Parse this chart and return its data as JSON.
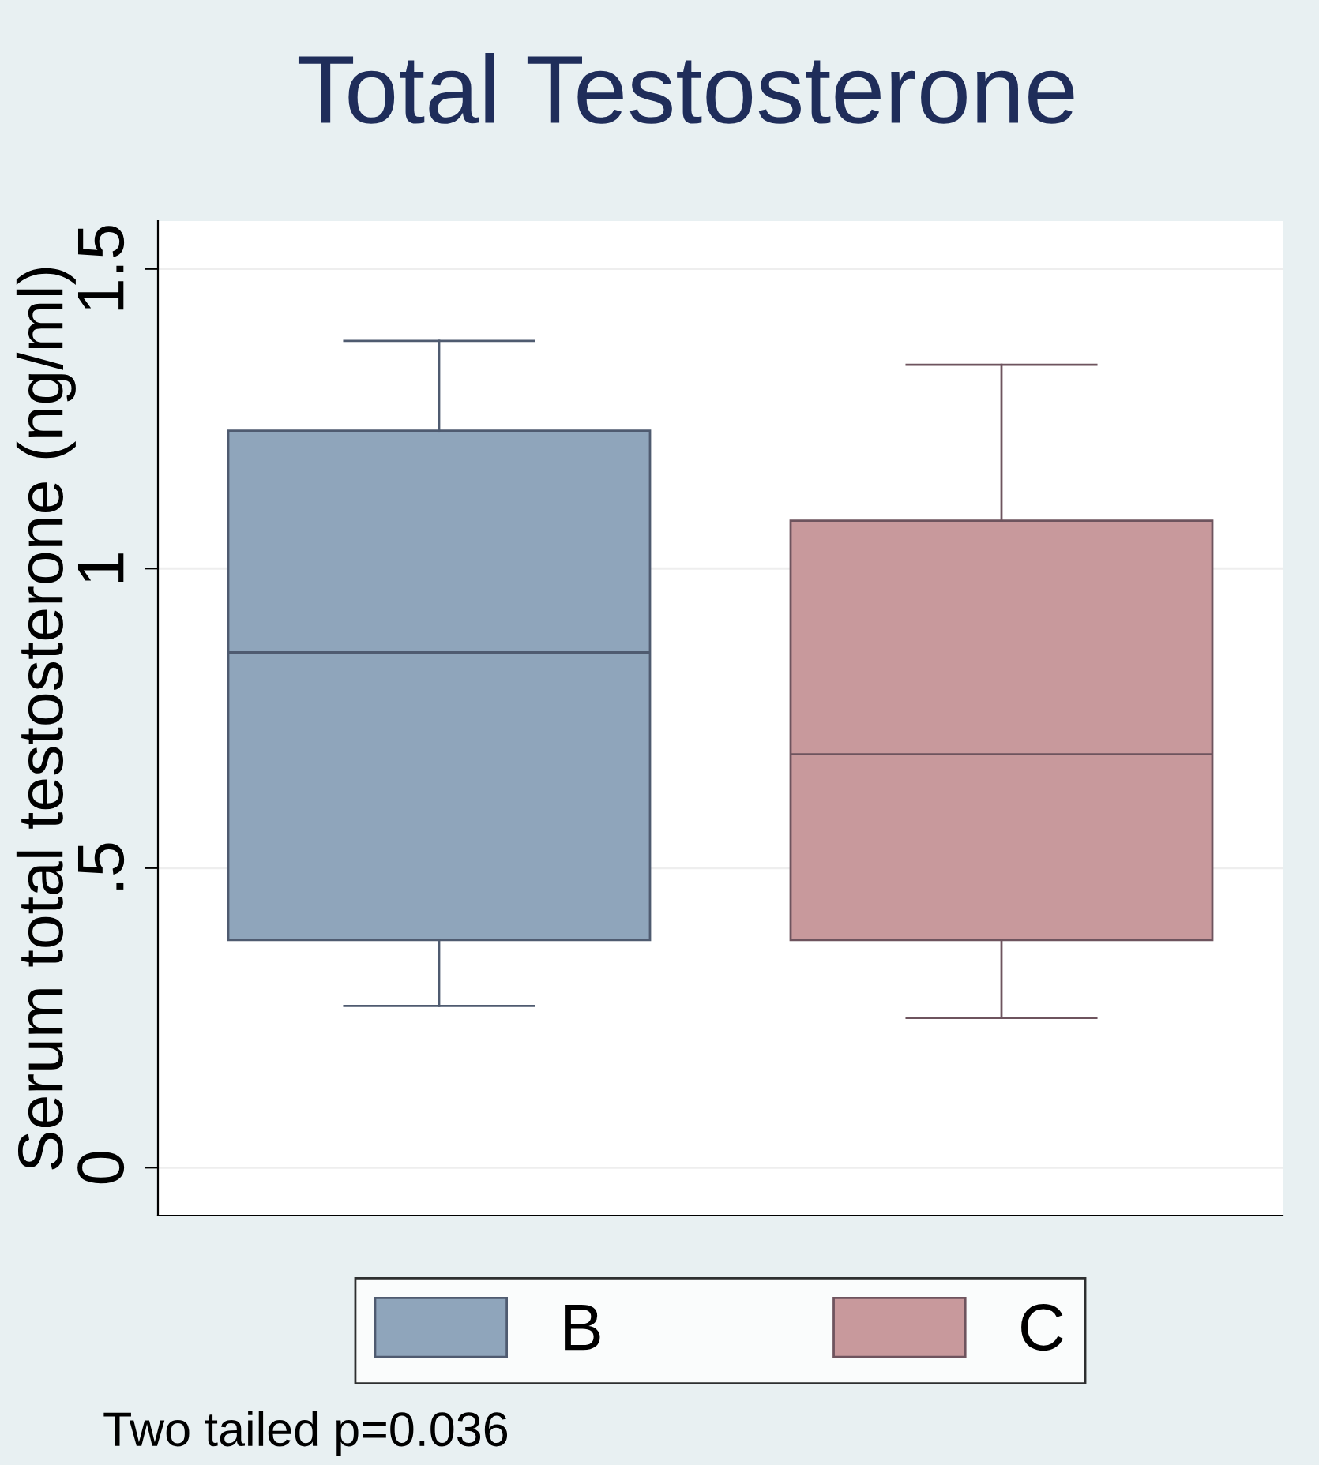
{
  "chart_data": {
    "type": "box",
    "title": "Total Testosterone",
    "ylabel": "Serum total testosterone (ng/ml)",
    "categories": [
      null
    ],
    "series": [
      {
        "name": "B",
        "color": "#8fa5bb",
        "boxes": [
          {
            "low": 0.27,
            "q1": 0.38,
            "median": 0.86,
            "q3": 1.23,
            "high": 1.38
          }
        ]
      },
      {
        "name": "C",
        "color": "#c8999c",
        "boxes": [
          {
            "low": 0.25,
            "q1": 0.38,
            "median": 0.69,
            "q3": 1.08,
            "high": 1.34
          }
        ]
      }
    ],
    "ylim": [
      -0.08,
      1.58
    ],
    "yticks": [
      0,
      {
        "value": 0.5,
        "label": ".5"
      },
      1,
      1.5
    ],
    "grid": "y",
    "legend": "bottom",
    "tick_labels": "y",
    "annotations": [
      "Two tailed p=0.036"
    ]
  }
}
